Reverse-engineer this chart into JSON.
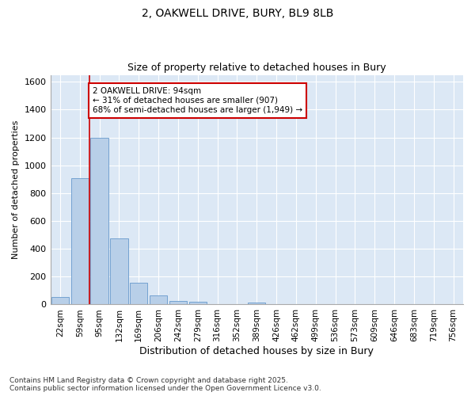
{
  "title_line1": "2, OAKWELL DRIVE, BURY, BL9 8LB",
  "title_line2": "Size of property relative to detached houses in Bury",
  "xlabel": "Distribution of detached houses by size in Bury",
  "ylabel": "Number of detached properties",
  "categories": [
    "22sqm",
    "59sqm",
    "95sqm",
    "132sqm",
    "169sqm",
    "206sqm",
    "242sqm",
    "279sqm",
    "316sqm",
    "352sqm",
    "389sqm",
    "426sqm",
    "462sqm",
    "499sqm",
    "536sqm",
    "573sqm",
    "609sqm",
    "646sqm",
    "683sqm",
    "719sqm",
    "756sqm"
  ],
  "values": [
    55,
    910,
    1200,
    475,
    155,
    65,
    28,
    22,
    0,
    0,
    15,
    0,
    0,
    0,
    0,
    0,
    0,
    0,
    0,
    0,
    0
  ],
  "bar_color": "#b8cfe8",
  "bar_edge_color": "#6699cc",
  "plot_bg_color": "#dce8f5",
  "fig_bg_color": "#ffffff",
  "grid_color": "#b8cfe8",
  "annotation_text": "2 OAKWELL DRIVE: 94sqm\n← 31% of detached houses are smaller (907)\n68% of semi-detached houses are larger (1,949) →",
  "annotation_box_color": "#ffffff",
  "annotation_box_edge_color": "#cc0000",
  "vline_x_index": 2,
  "vline_color": "#cc0000",
  "ylim": [
    0,
    1650
  ],
  "yticks": [
    0,
    200,
    400,
    600,
    800,
    1000,
    1200,
    1400,
    1600
  ],
  "footnote": "Contains HM Land Registry data © Crown copyright and database right 2025.\nContains public sector information licensed under the Open Government Licence v3.0."
}
